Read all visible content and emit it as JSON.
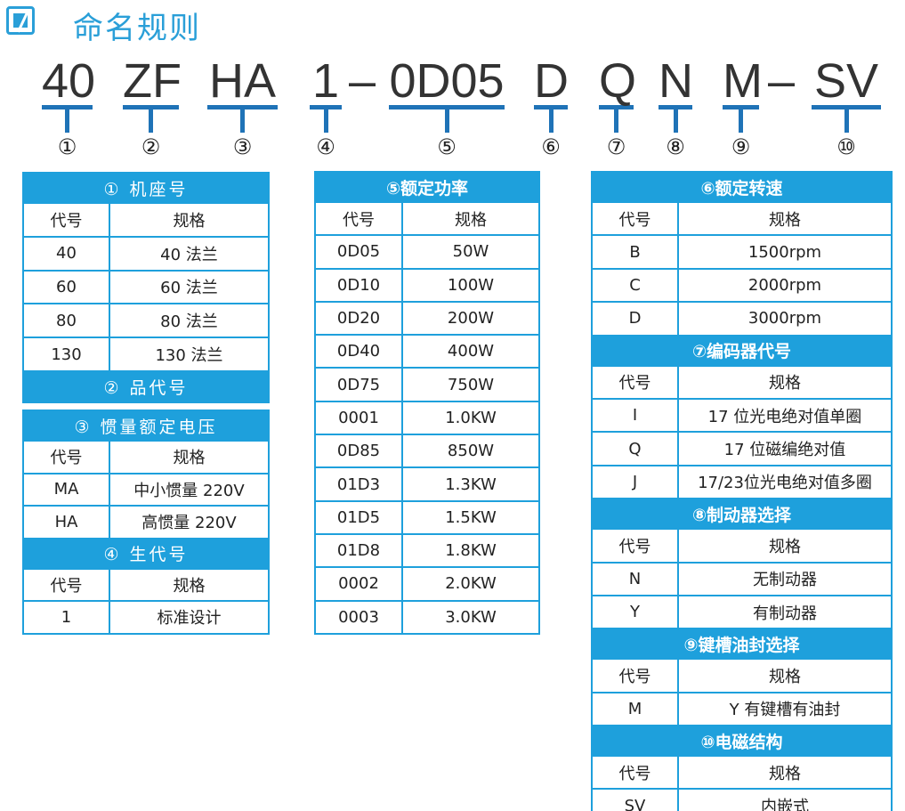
{
  "title": "命名规则",
  "title_icon": "motor-logo-icon",
  "accent_color": "#1ea0dc",
  "code_segments": [
    {
      "text": "40",
      "num": "①"
    },
    {
      "text": "ZF",
      "num": "②"
    },
    {
      "text": "HA",
      "num": "③"
    },
    {
      "text": "1",
      "num": "④"
    },
    {
      "text": "0D05",
      "num": "⑤"
    },
    {
      "text": "D",
      "num": "⑥"
    },
    {
      "text": "Q",
      "num": "⑦"
    },
    {
      "text": "N",
      "num": "⑧"
    },
    {
      "text": "M",
      "num": "⑨"
    },
    {
      "text": "SV",
      "num": "⑩"
    }
  ],
  "dashes": [
    "–",
    "–"
  ],
  "tables": [
    {
      "id": "t1",
      "sections": [
        {
          "header": "①  机座号",
          "columns": [
            "代号",
            "规格"
          ],
          "rows": [
            [
              "40",
              "40 法兰"
            ],
            [
              "60",
              "60 法兰"
            ],
            [
              "80",
              "80 法兰"
            ],
            [
              "130",
              "130 法兰"
            ]
          ]
        }
      ]
    },
    {
      "id": "t2",
      "sections": [
        {
          "header": "②  品代号"
        }
      ]
    },
    {
      "id": "t3",
      "sections": [
        {
          "header": "③  惯量额定电压",
          "columns": [
            "代号",
            "规格"
          ],
          "rows": [
            [
              "MA",
              "中小惯量 220V"
            ],
            [
              "HA",
              "高惯量 220V"
            ]
          ]
        },
        {
          "header": "④  生代号",
          "columns": [
            "代号",
            "规格"
          ],
          "rows": [
            [
              "1",
              "标准设计"
            ]
          ]
        }
      ]
    },
    {
      "id": "t4",
      "sections": [
        {
          "header": "⑤额定功率",
          "columns": [
            "代号",
            "规格"
          ],
          "rows": [
            [
              "0D05",
              "50W"
            ],
            [
              "0D10",
              "100W"
            ],
            [
              "0D20",
              "200W"
            ],
            [
              "0D40",
              "400W"
            ],
            [
              "0D75",
              "750W"
            ],
            [
              "0001",
              "1.0KW"
            ],
            [
              "0D85",
              "850W"
            ],
            [
              "01D3",
              "1.3KW"
            ],
            [
              "01D5",
              "1.5KW"
            ],
            [
              "01D8",
              "1.8KW"
            ],
            [
              "0002",
              "2.0KW"
            ],
            [
              "0003",
              "3.0KW"
            ]
          ]
        }
      ]
    },
    {
      "id": "t5",
      "sections": [
        {
          "header": "⑥额定转速",
          "columns": [
            "代号",
            "规格"
          ],
          "rows": [
            [
              "B",
              "1500rpm"
            ],
            [
              "C",
              "2000rpm"
            ],
            [
              "D",
              "3000rpm"
            ]
          ]
        },
        {
          "header": "⑦编码器代号",
          "columns": [
            "代号",
            "规格"
          ],
          "rows": [
            [
              "I",
              "17 位光电绝对值单圈"
            ],
            [
              "Q",
              "17 位磁编绝对值"
            ],
            [
              "J",
              "17/23位光电绝对值多圈"
            ]
          ]
        },
        {
          "header": "⑧制动器选择",
          "columns": [
            "代号",
            "规格"
          ],
          "rows": [
            [
              "N",
              "无制动器"
            ],
            [
              "Y",
              "有制动器"
            ]
          ]
        },
        {
          "header": "⑨键槽油封选择",
          "columns": [
            "代号",
            "规格"
          ],
          "rows": [
            [
              "M",
              "Y 有键槽有油封"
            ]
          ]
        },
        {
          "header": "⑩电磁结构",
          "columns": [
            "代号",
            "规格"
          ],
          "rows": [
            [
              "SV",
              "内嵌式"
            ]
          ]
        }
      ]
    }
  ]
}
